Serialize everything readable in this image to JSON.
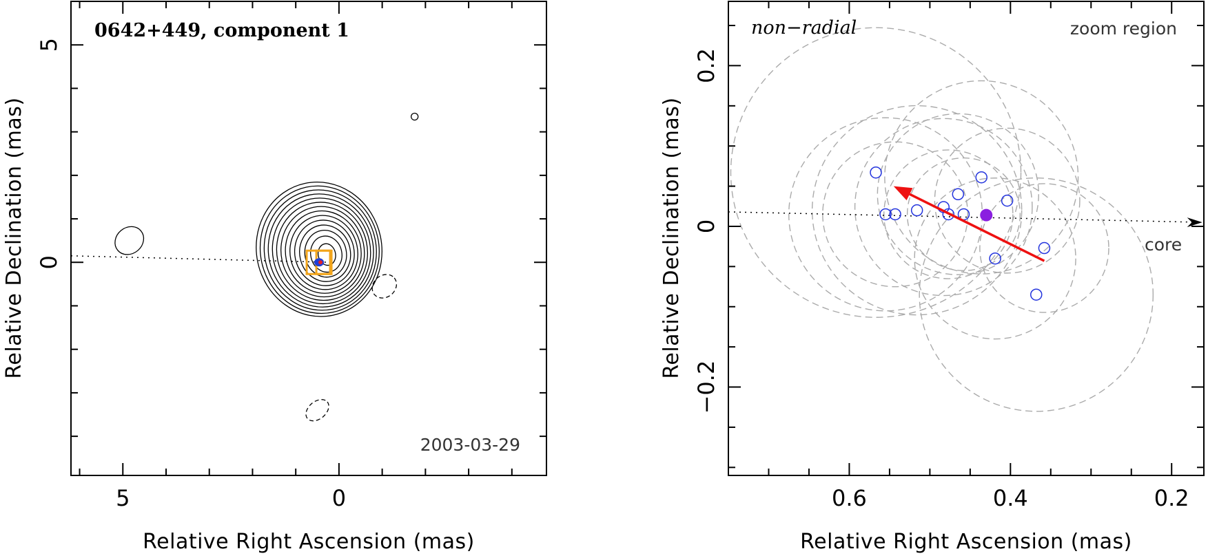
{
  "chart_data": [
    {
      "type": "contour",
      "title": "0642+449, component 1",
      "date": "2003-03-29",
      "xlabel": "Relative Right Ascension (mas)",
      "ylabel": "Relative Declination (mas)",
      "xlim": [
        6.2,
        -4.8
      ],
      "ylim": [
        -4.9,
        6.0
      ],
      "x_ticks": [
        5,
        0
      ],
      "y_ticks": [
        5,
        0
      ],
      "x_tick_labels": [
        "5",
        "0"
      ],
      "y_tick_labels": [
        "5",
        "0"
      ],
      "colors": {
        "contour": "#000000",
        "component": "#1f3fd6",
        "box": "#f2a51c",
        "marker": "#e0202a"
      },
      "main_contours": {
        "center": [
          0.28,
          0.18
        ],
        "count": 14,
        "min_radius": [
          0.2,
          0.25
        ],
        "max_radius": [
          1.45,
          1.55
        ]
      },
      "side_contours": [
        {
          "x": 4.85,
          "y": 0.5,
          "rx": 0.35,
          "ry": 0.3,
          "dashed": false
        },
        {
          "x": -1.05,
          "y": -0.55,
          "rx": 0.3,
          "ry": 0.25,
          "dashed": true
        },
        {
          "x": 0.5,
          "y": -3.4,
          "rx": 0.3,
          "ry": 0.2,
          "dashed": true
        },
        {
          "x": -1.75,
          "y": 3.35,
          "rx": 0.08,
          "ry": 0.08,
          "dashed": false
        }
      ],
      "jet_line": {
        "from": [
          6.2,
          0.15
        ],
        "to": [
          0.2,
          0.0
        ]
      }
    },
    {
      "type": "scatter",
      "label_left": "non−radial",
      "label_right": "zoom region",
      "core_label": "core",
      "xlabel": "Relative Right Ascension (mas)",
      "ylabel": "Relative Declination (mas)",
      "xlim": [
        0.75,
        0.16
      ],
      "ylim": [
        -0.31,
        0.28
      ],
      "x_ticks": [
        0.6,
        0.4,
        0.2
      ],
      "y_ticks": [
        0.2,
        0,
        -0.2
      ],
      "x_tick_labels": [
        "0.6",
        "0.4",
        "0.2"
      ],
      "y_tick_labels": [
        "0.2",
        "0",
        "−0.2"
      ],
      "colors": {
        "points": "#2233dd",
        "mean": "#8a1fe0",
        "arrow": "#ee1111",
        "circles": "#aaaaaa"
      },
      "points": [
        {
          "x": 0.567,
          "y": 0.067
        },
        {
          "x": 0.555,
          "y": 0.015
        },
        {
          "x": 0.543,
          "y": 0.015
        },
        {
          "x": 0.516,
          "y": 0.02
        },
        {
          "x": 0.483,
          "y": 0.024
        },
        {
          "x": 0.477,
          "y": 0.015
        },
        {
          "x": 0.465,
          "y": 0.04
        },
        {
          "x": 0.458,
          "y": 0.015
        },
        {
          "x": 0.436,
          "y": 0.061
        },
        {
          "x": 0.419,
          "y": -0.04
        },
        {
          "x": 0.404,
          "y": 0.032
        },
        {
          "x": 0.368,
          "y": -0.085
        },
        {
          "x": 0.358,
          "y": -0.027
        }
      ],
      "mean_point": {
        "x": 0.43,
        "y": 0.014
      },
      "arrow": {
        "from": [
          0.358,
          -0.043
        ],
        "to": [
          0.545,
          0.05
        ]
      },
      "core_line": {
        "from": [
          0.75,
          0.018
        ],
        "to": [
          0.162,
          0.005
        ]
      },
      "uncertainty_circles": [
        {
          "x": 0.567,
          "y": 0.067,
          "r": 0.18
        },
        {
          "x": 0.555,
          "y": 0.015,
          "r": 0.12
        },
        {
          "x": 0.543,
          "y": 0.015,
          "r": 0.09
        },
        {
          "x": 0.516,
          "y": 0.02,
          "r": 0.13
        },
        {
          "x": 0.483,
          "y": 0.024,
          "r": 0.11
        },
        {
          "x": 0.477,
          "y": 0.015,
          "r": 0.08
        },
        {
          "x": 0.465,
          "y": 0.04,
          "r": 0.1
        },
        {
          "x": 0.458,
          "y": 0.015,
          "r": 0.07
        },
        {
          "x": 0.436,
          "y": 0.061,
          "r": 0.12
        },
        {
          "x": 0.419,
          "y": -0.04,
          "r": 0.1
        },
        {
          "x": 0.404,
          "y": 0.032,
          "r": 0.09
        },
        {
          "x": 0.368,
          "y": -0.085,
          "r": 0.145
        },
        {
          "x": 0.358,
          "y": -0.027,
          "r": 0.08
        }
      ]
    }
  ]
}
